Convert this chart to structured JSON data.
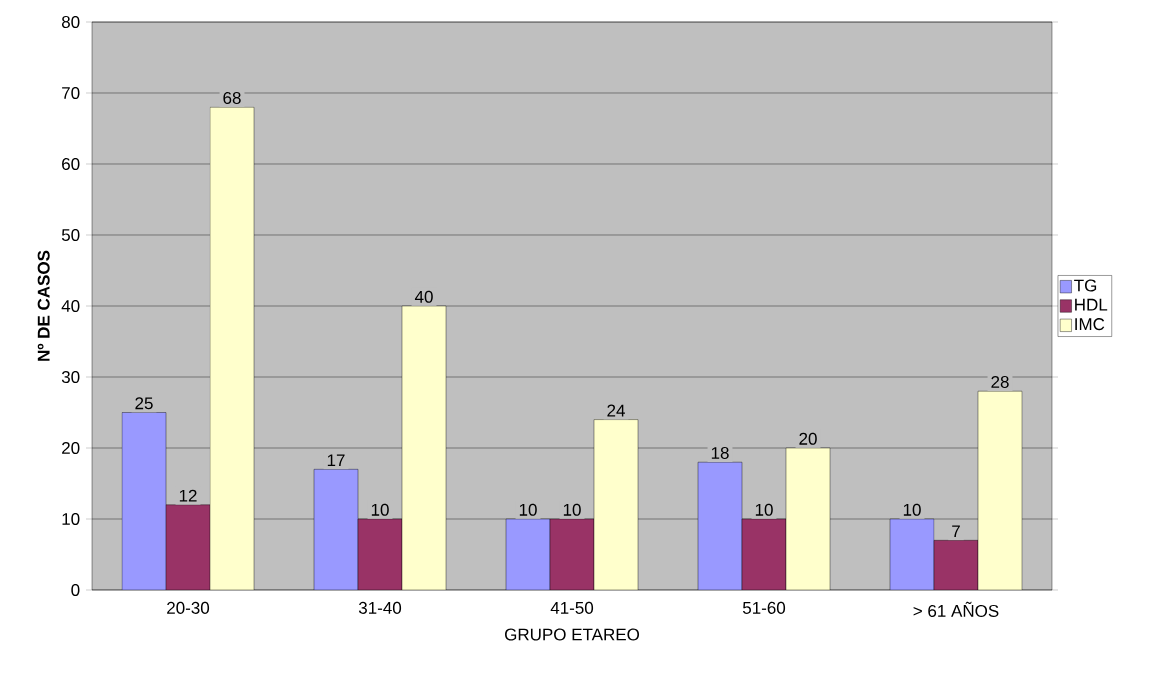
{
  "chart_data": {
    "type": "bar",
    "xlabel": "GRUPO ETAREO",
    "ylabel": "Nº DE CASOS",
    "categories": [
      "20-30",
      "31-40",
      "41-50",
      "51-60",
      "> 61 AÑOS"
    ],
    "series": [
      {
        "name": "TG",
        "color": "#9999ff",
        "values": [
          25,
          17,
          10,
          18,
          10
        ]
      },
      {
        "name": "HDL",
        "color": "#993366",
        "values": [
          12,
          10,
          10,
          10,
          7
        ]
      },
      {
        "name": "IMC",
        "color": "#ffffcc",
        "values": [
          68,
          40,
          24,
          20,
          28
        ]
      }
    ],
    "ylim": [
      0,
      80
    ],
    "yticks": [
      0,
      10,
      20,
      30,
      40,
      50,
      60,
      70,
      80
    ],
    "grid": "y",
    "legend": "right",
    "data_labels": true
  }
}
